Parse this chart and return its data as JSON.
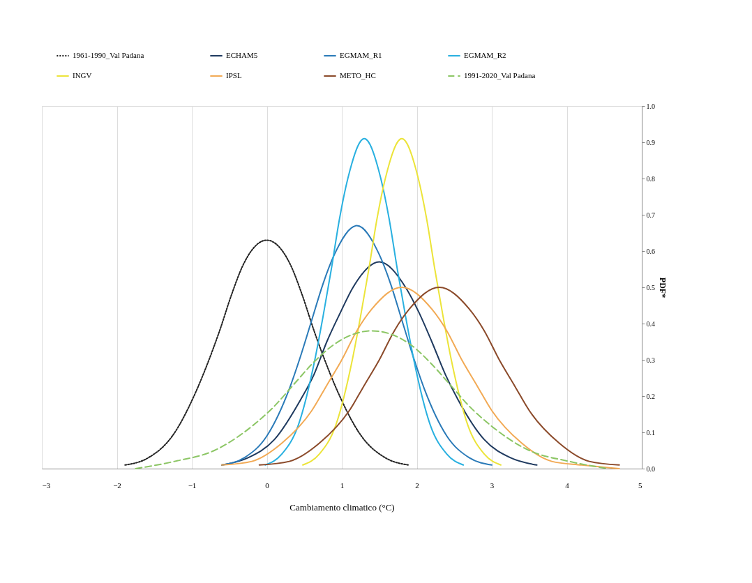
{
  "chart_data": {
    "type": "line",
    "xlabel": "Cambiamento climatico (°C)",
    "ylabel": "PDF*",
    "xlim": [
      -3,
      5
    ],
    "xticks": [
      -3,
      -2,
      -1,
      0,
      1,
      2,
      3,
      4,
      5
    ],
    "ylim": [
      0,
      1
    ],
    "yticks": [
      {
        "value": 0,
        "label": "0.0"
      },
      0.1,
      0.2,
      0.3,
      0.4,
      0.5,
      0.6,
      0.7,
      0.8,
      0.9,
      {
        "value": 1,
        "label": "1.0"
      }
    ],
    "grid": "x",
    "legend": "top",
    "marker": "none",
    "series": [
      {
        "name": "1961-1990_Val Padana",
        "color": "#222222",
        "line_style": "dotted",
        "x": [
          -1.89,
          -1.58,
          -1.26,
          -0.95,
          -0.79,
          -0.63,
          -0.47,
          -0.32,
          0,
          0.32,
          0.47,
          0.63,
          0.79,
          0.95,
          1.26,
          1.58,
          1.89
        ],
        "values": [
          0.01,
          0.03,
          0.09,
          0.21,
          0.29,
          0.38,
          0.48,
          0.56,
          0.63,
          0.56,
          0.48,
          0.38,
          0.29,
          0.21,
          0.09,
          0.03,
          0.01
        ]
      },
      {
        "name": "ECHAM5",
        "color": "#1f3a5f",
        "x": [
          -0.6,
          -0.25,
          0.1,
          0.45,
          0.63,
          0.8,
          0.98,
          1.15,
          1.5,
          1.85,
          2.03,
          2.2,
          2.38,
          2.55,
          2.9,
          3.25,
          3.6
        ],
        "values": [
          0.01,
          0.03,
          0.08,
          0.19,
          0.26,
          0.35,
          0.43,
          0.5,
          0.57,
          0.5,
          0.43,
          0.35,
          0.26,
          0.19,
          0.08,
          0.03,
          0.01
        ]
      },
      {
        "name": "EGMAM_R1",
        "color": "#2a7ab8",
        "x": [
          -0.6,
          -0.3,
          0,
          0.3,
          0.45,
          0.6,
          0.75,
          0.9,
          1.2,
          1.5,
          1.65,
          1.8,
          1.95,
          2.1,
          2.4,
          2.7,
          3.0
        ],
        "values": [
          0.01,
          0.03,
          0.09,
          0.22,
          0.31,
          0.41,
          0.51,
          0.59,
          0.67,
          0.59,
          0.51,
          0.41,
          0.31,
          0.22,
          0.09,
          0.03,
          0.01
        ]
      },
      {
        "name": "EGMAM_R2",
        "color": "#29b0e0",
        "x": [
          -0.02,
          0.2,
          0.42,
          0.64,
          0.75,
          0.86,
          0.97,
          1.08,
          1.3,
          1.52,
          1.63,
          1.74,
          1.85,
          1.96,
          2.18,
          2.4,
          2.62
        ],
        "values": [
          0.01,
          0.04,
          0.12,
          0.3,
          0.42,
          0.55,
          0.69,
          0.8,
          0.91,
          0.8,
          0.69,
          0.55,
          0.42,
          0.3,
          0.12,
          0.04,
          0.01
        ]
      },
      {
        "name": "INGV",
        "color": "#ece43a",
        "x": [
          0.48,
          0.7,
          0.92,
          1.14,
          1.25,
          1.36,
          1.47,
          1.58,
          1.8,
          2.02,
          2.13,
          2.24,
          2.35,
          2.46,
          2.68,
          2.9,
          3.12
        ],
        "values": [
          0.01,
          0.04,
          0.12,
          0.3,
          0.42,
          0.55,
          0.69,
          0.8,
          0.91,
          0.8,
          0.69,
          0.55,
          0.42,
          0.3,
          0.12,
          0.04,
          0.01
        ]
      },
      {
        "name": "IPSL",
        "color": "#f2aa55",
        "x": [
          -0.6,
          -0.2,
          0.2,
          0.6,
          0.8,
          1.0,
          1.2,
          1.4,
          1.8,
          2.2,
          2.4,
          2.6,
          2.8,
          3.0,
          3.4,
          3.8,
          4.2,
          4.7
        ],
        "values": [
          0.01,
          0.02,
          0.07,
          0.16,
          0.23,
          0.3,
          0.38,
          0.44,
          0.5,
          0.44,
          0.38,
          0.3,
          0.23,
          0.16,
          0.07,
          0.02,
          0.01,
          0.0
        ]
      },
      {
        "name": "METO_HC",
        "color": "#8b4a2a",
        "x": [
          -0.1,
          0.3,
          0.7,
          1.1,
          1.3,
          1.5,
          1.7,
          1.9,
          2.3,
          2.7,
          2.9,
          3.1,
          3.3,
          3.5,
          3.9,
          4.3,
          4.7
        ],
        "values": [
          0.01,
          0.02,
          0.07,
          0.16,
          0.23,
          0.3,
          0.38,
          0.44,
          0.5,
          0.44,
          0.38,
          0.3,
          0.23,
          0.16,
          0.07,
          0.02,
          0.01
        ]
      },
      {
        "name": "1991-2020_Val Padana",
        "color": "#8cc665",
        "line_style": "dashed",
        "x": [
          -1.75,
          -1.23,
          -0.7,
          -0.18,
          0.09,
          0.35,
          0.61,
          0.88,
          1.4,
          1.93,
          2.19,
          2.45,
          2.71,
          2.98,
          3.5,
          4.03,
          4.55
        ],
        "values": [
          0.0,
          0.02,
          0.05,
          0.12,
          0.17,
          0.23,
          0.29,
          0.34,
          0.38,
          0.34,
          0.29,
          0.23,
          0.17,
          0.12,
          0.05,
          0.02,
          0.0
        ]
      }
    ]
  }
}
